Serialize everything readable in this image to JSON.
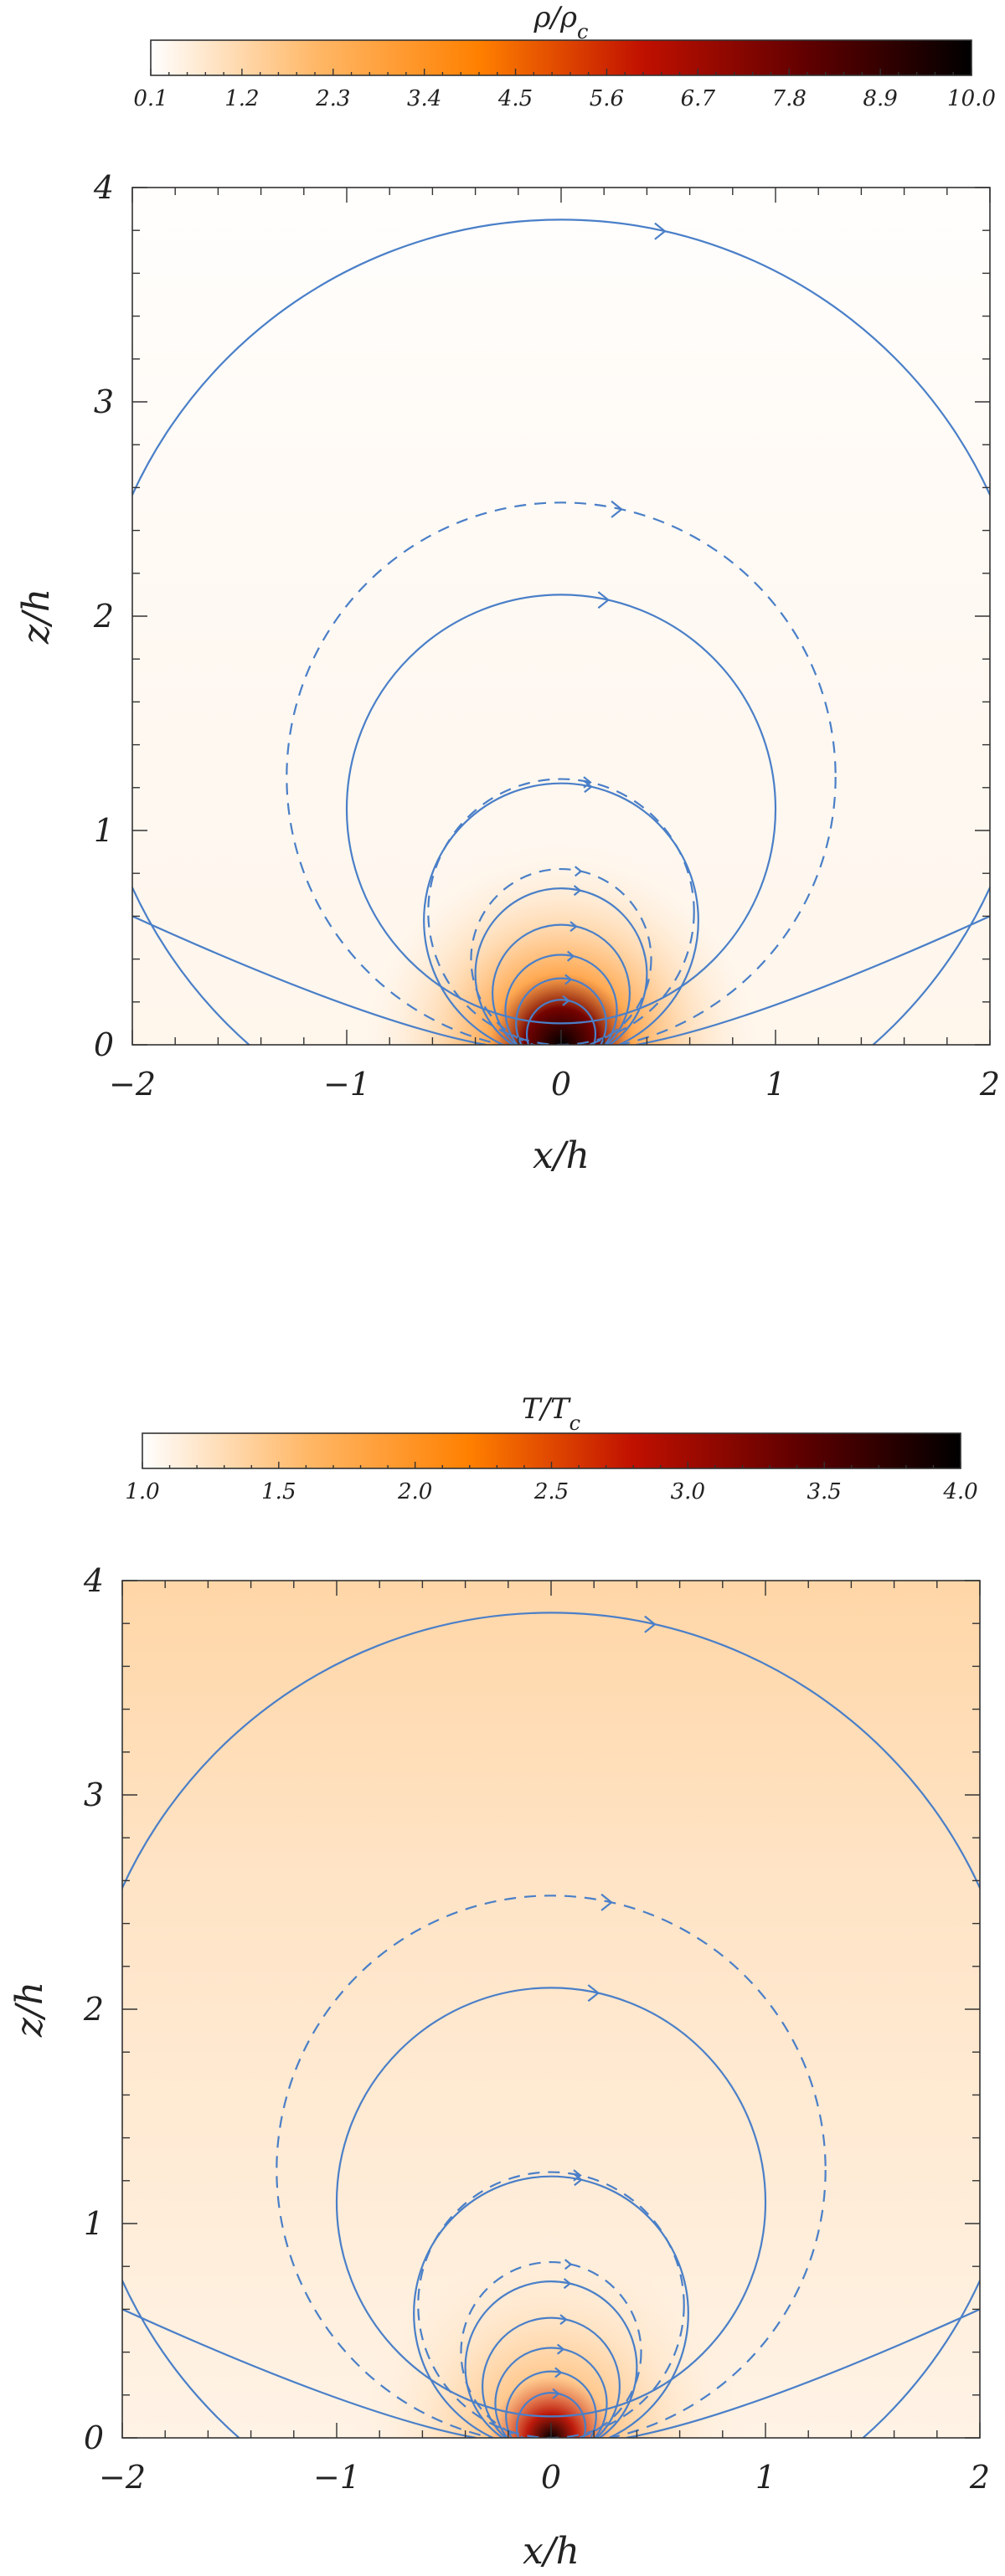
{
  "chart_data": [
    {
      "type": "heatmap",
      "colorbar": {
        "title": "ρ/ρ",
        "title_sub": "c",
        "ticks": [
          "0.1",
          "1.2",
          "2.3",
          "3.4",
          "4.5",
          "5.6",
          "6.7",
          "7.8",
          "8.9",
          "10.0"
        ],
        "range": [
          0.1,
          10.0
        ],
        "colormap": [
          "#ffffff",
          "#ffb868",
          "#ff8000",
          "#c01000",
          "#600000",
          "#000000"
        ]
      },
      "xlabel": "x/h",
      "ylabel": "z/h",
      "xlim": [
        -2,
        2
      ],
      "ylim": [
        0,
        4
      ],
      "xticks": [
        "−2",
        "−1",
        "0",
        "1",
        "2"
      ],
      "yticks": [
        "0",
        "1",
        "2",
        "3",
        "4"
      ],
      "field": {
        "background_value": 0.35,
        "top_value": 0.12,
        "core_value": 10.0,
        "core_x": 0,
        "core_z": 0
      },
      "field_lines": [
        {
          "style": "solid",
          "center_z": 1.65,
          "radius": 2.2
        },
        {
          "style": "dashed",
          "center_z": 1.25,
          "radius": 1.28
        },
        {
          "style": "solid",
          "center_z": 1.1,
          "radius": 1.0
        },
        {
          "style": "dashed",
          "center_z": 0.62,
          "radius": 0.62
        },
        {
          "style": "solid",
          "center_z": 0.58,
          "radius": 0.64
        },
        {
          "style": "dashed",
          "center_z": 0.4,
          "radius": 0.42
        },
        {
          "style": "solid",
          "center_z": 0.33,
          "radius": 0.4
        },
        {
          "style": "solid",
          "center_z": 0.24,
          "radius": 0.32
        },
        {
          "style": "solid",
          "center_z": 0.16,
          "radius": 0.26
        },
        {
          "style": "solid",
          "center_z": 0.1,
          "radius": 0.21
        },
        {
          "style": "solid",
          "center_z": 0.05,
          "radius": 0.16
        }
      ]
    },
    {
      "type": "heatmap",
      "colorbar": {
        "title": "T/T",
        "title_sub": "c",
        "ticks": [
          "1.0",
          "1.5",
          "2.0",
          "2.5",
          "3.0",
          "3.5",
          "4.0"
        ],
        "range": [
          1.0,
          4.0
        ],
        "colormap": [
          "#ffffff",
          "#ffb868",
          "#ff8000",
          "#c01000",
          "#600000",
          "#000000"
        ]
      },
      "xlabel": "x/h",
      "ylabel": "z/h",
      "xlim": [
        -2,
        2
      ],
      "ylim": [
        0,
        4
      ],
      "xticks": [
        "−2",
        "−1",
        "0",
        "1",
        "2"
      ],
      "yticks": [
        "0",
        "1",
        "2",
        "3",
        "4"
      ],
      "field": {
        "background_value": 1.1,
        "top_value": 1.35,
        "core_value": 4.0,
        "core_x": 0,
        "core_z": 0
      },
      "field_lines": [
        {
          "style": "solid",
          "center_z": 1.65,
          "radius": 2.2
        },
        {
          "style": "dashed",
          "center_z": 1.25,
          "radius": 1.28
        },
        {
          "style": "solid",
          "center_z": 1.1,
          "radius": 1.0
        },
        {
          "style": "dashed",
          "center_z": 0.62,
          "radius": 0.62
        },
        {
          "style": "solid",
          "center_z": 0.58,
          "radius": 0.64
        },
        {
          "style": "dashed",
          "center_z": 0.4,
          "radius": 0.42
        },
        {
          "style": "solid",
          "center_z": 0.33,
          "radius": 0.4
        },
        {
          "style": "solid",
          "center_z": 0.24,
          "radius": 0.32
        },
        {
          "style": "solid",
          "center_z": 0.16,
          "radius": 0.26
        },
        {
          "style": "solid",
          "center_z": 0.1,
          "radius": 0.21
        },
        {
          "style": "solid",
          "center_z": 0.05,
          "radius": 0.16
        }
      ]
    }
  ]
}
